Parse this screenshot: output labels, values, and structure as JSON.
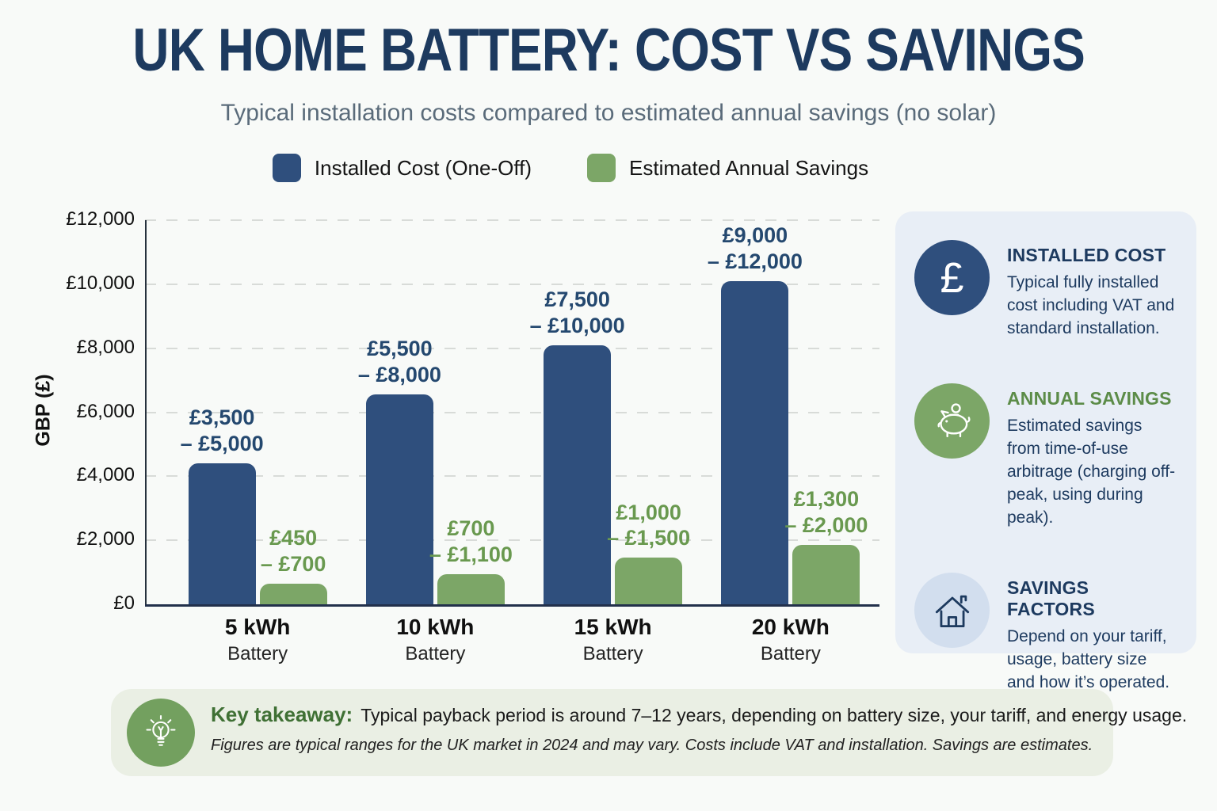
{
  "palette": {
    "navy": "#1d3a5f",
    "bar_blue": "#2f4f7d",
    "bar_green": "#7ca667",
    "green_heading": "#5c8c48",
    "subtitle_gray": "#5a6b7a",
    "footer_green": "#3f7034"
  },
  "header": {
    "title": "UK HOME BATTERY: COST VS SAVINGS",
    "subtitle": "Typical installation costs compared to estimated annual savings (no solar)"
  },
  "legend": {
    "items": [
      {
        "label": "Installed Cost (One-Off)",
        "color": "#2f4f7d"
      },
      {
        "label": "Estimated Annual Savings",
        "color": "#7ca667"
      }
    ]
  },
  "chart_data": {
    "type": "bar",
    "title": "UK Home Battery: Cost vs Savings",
    "xlabel": "",
    "ylabel": "GBP (£)",
    "ylim": [
      0,
      12000
    ],
    "ytick_step": 2000,
    "yticks_labels": [
      "£0",
      "£2,000",
      "£4,000",
      "£6,000",
      "£8,000",
      "£10,000",
      "£12,000"
    ],
    "grid": "horizontal-dashed",
    "legend_position": "top",
    "categories": [
      {
        "line1": "5 kWh",
        "line2": "Battery"
      },
      {
        "line1": "10 kWh",
        "line2": "Battery"
      },
      {
        "line1": "15 kWh",
        "line2": "Battery"
      },
      {
        "line1": "20 kWh",
        "line2": "Battery"
      }
    ],
    "series": [
      {
        "name": "Installed Cost (One-Off)",
        "color": "#2f4f7d",
        "label_color": "#24486f",
        "bar_values": [
          4400,
          6550,
          8100,
          10100
        ],
        "range_labels": [
          [
            "£3,500",
            "– £5,000"
          ],
          [
            "£5,500",
            "– £8,000"
          ],
          [
            "£7,500",
            "– £10,000"
          ],
          [
            "£9,000",
            "– £12,000"
          ]
        ]
      },
      {
        "name": "Estimated Annual Savings",
        "color": "#7ca667",
        "label_color": "#69994f",
        "bar_values": [
          650,
          950,
          1450,
          1850
        ],
        "range_labels": [
          [
            "£450",
            "– £700"
          ],
          [
            "£700",
            "– £1,100"
          ],
          [
            "£1,000",
            "– £1,500"
          ],
          [
            "£1,300",
            "– £2,000"
          ]
        ]
      }
    ]
  },
  "sidebar": {
    "cards": [
      {
        "icon": "pound-icon",
        "icon_glyph": "£",
        "icon_bg": "#2f4f7d",
        "title": "INSTALLED COST",
        "title_color": "#1d3a5f",
        "body": "Typical fully installed cost including VAT and standard installation."
      },
      {
        "icon": "piggy-bank-icon",
        "icon_bg": "#7ca667",
        "title": "ANNUAL SAVINGS",
        "title_color": "#5c8c48",
        "body": "Estimated savings from time-of-use arbitrage (charging off-peak, using during peak)."
      },
      {
        "icon": "house-icon",
        "icon_bg": "#d2deee",
        "title": "SAVINGS FACTORS",
        "title_color": "#1d3a5f",
        "body": "Depend on your tariff, usage, battery size and how it’s operated."
      }
    ]
  },
  "footer": {
    "icon": "lightbulb-icon",
    "label": "Key takeaway:",
    "text": "Typical payback period is around 7–12 years, depending on battery size, your tariff, and energy usage.",
    "fine_print": "Figures are typical ranges for the UK market in 2024 and may vary. Costs include VAT and installation. Savings are estimates."
  }
}
